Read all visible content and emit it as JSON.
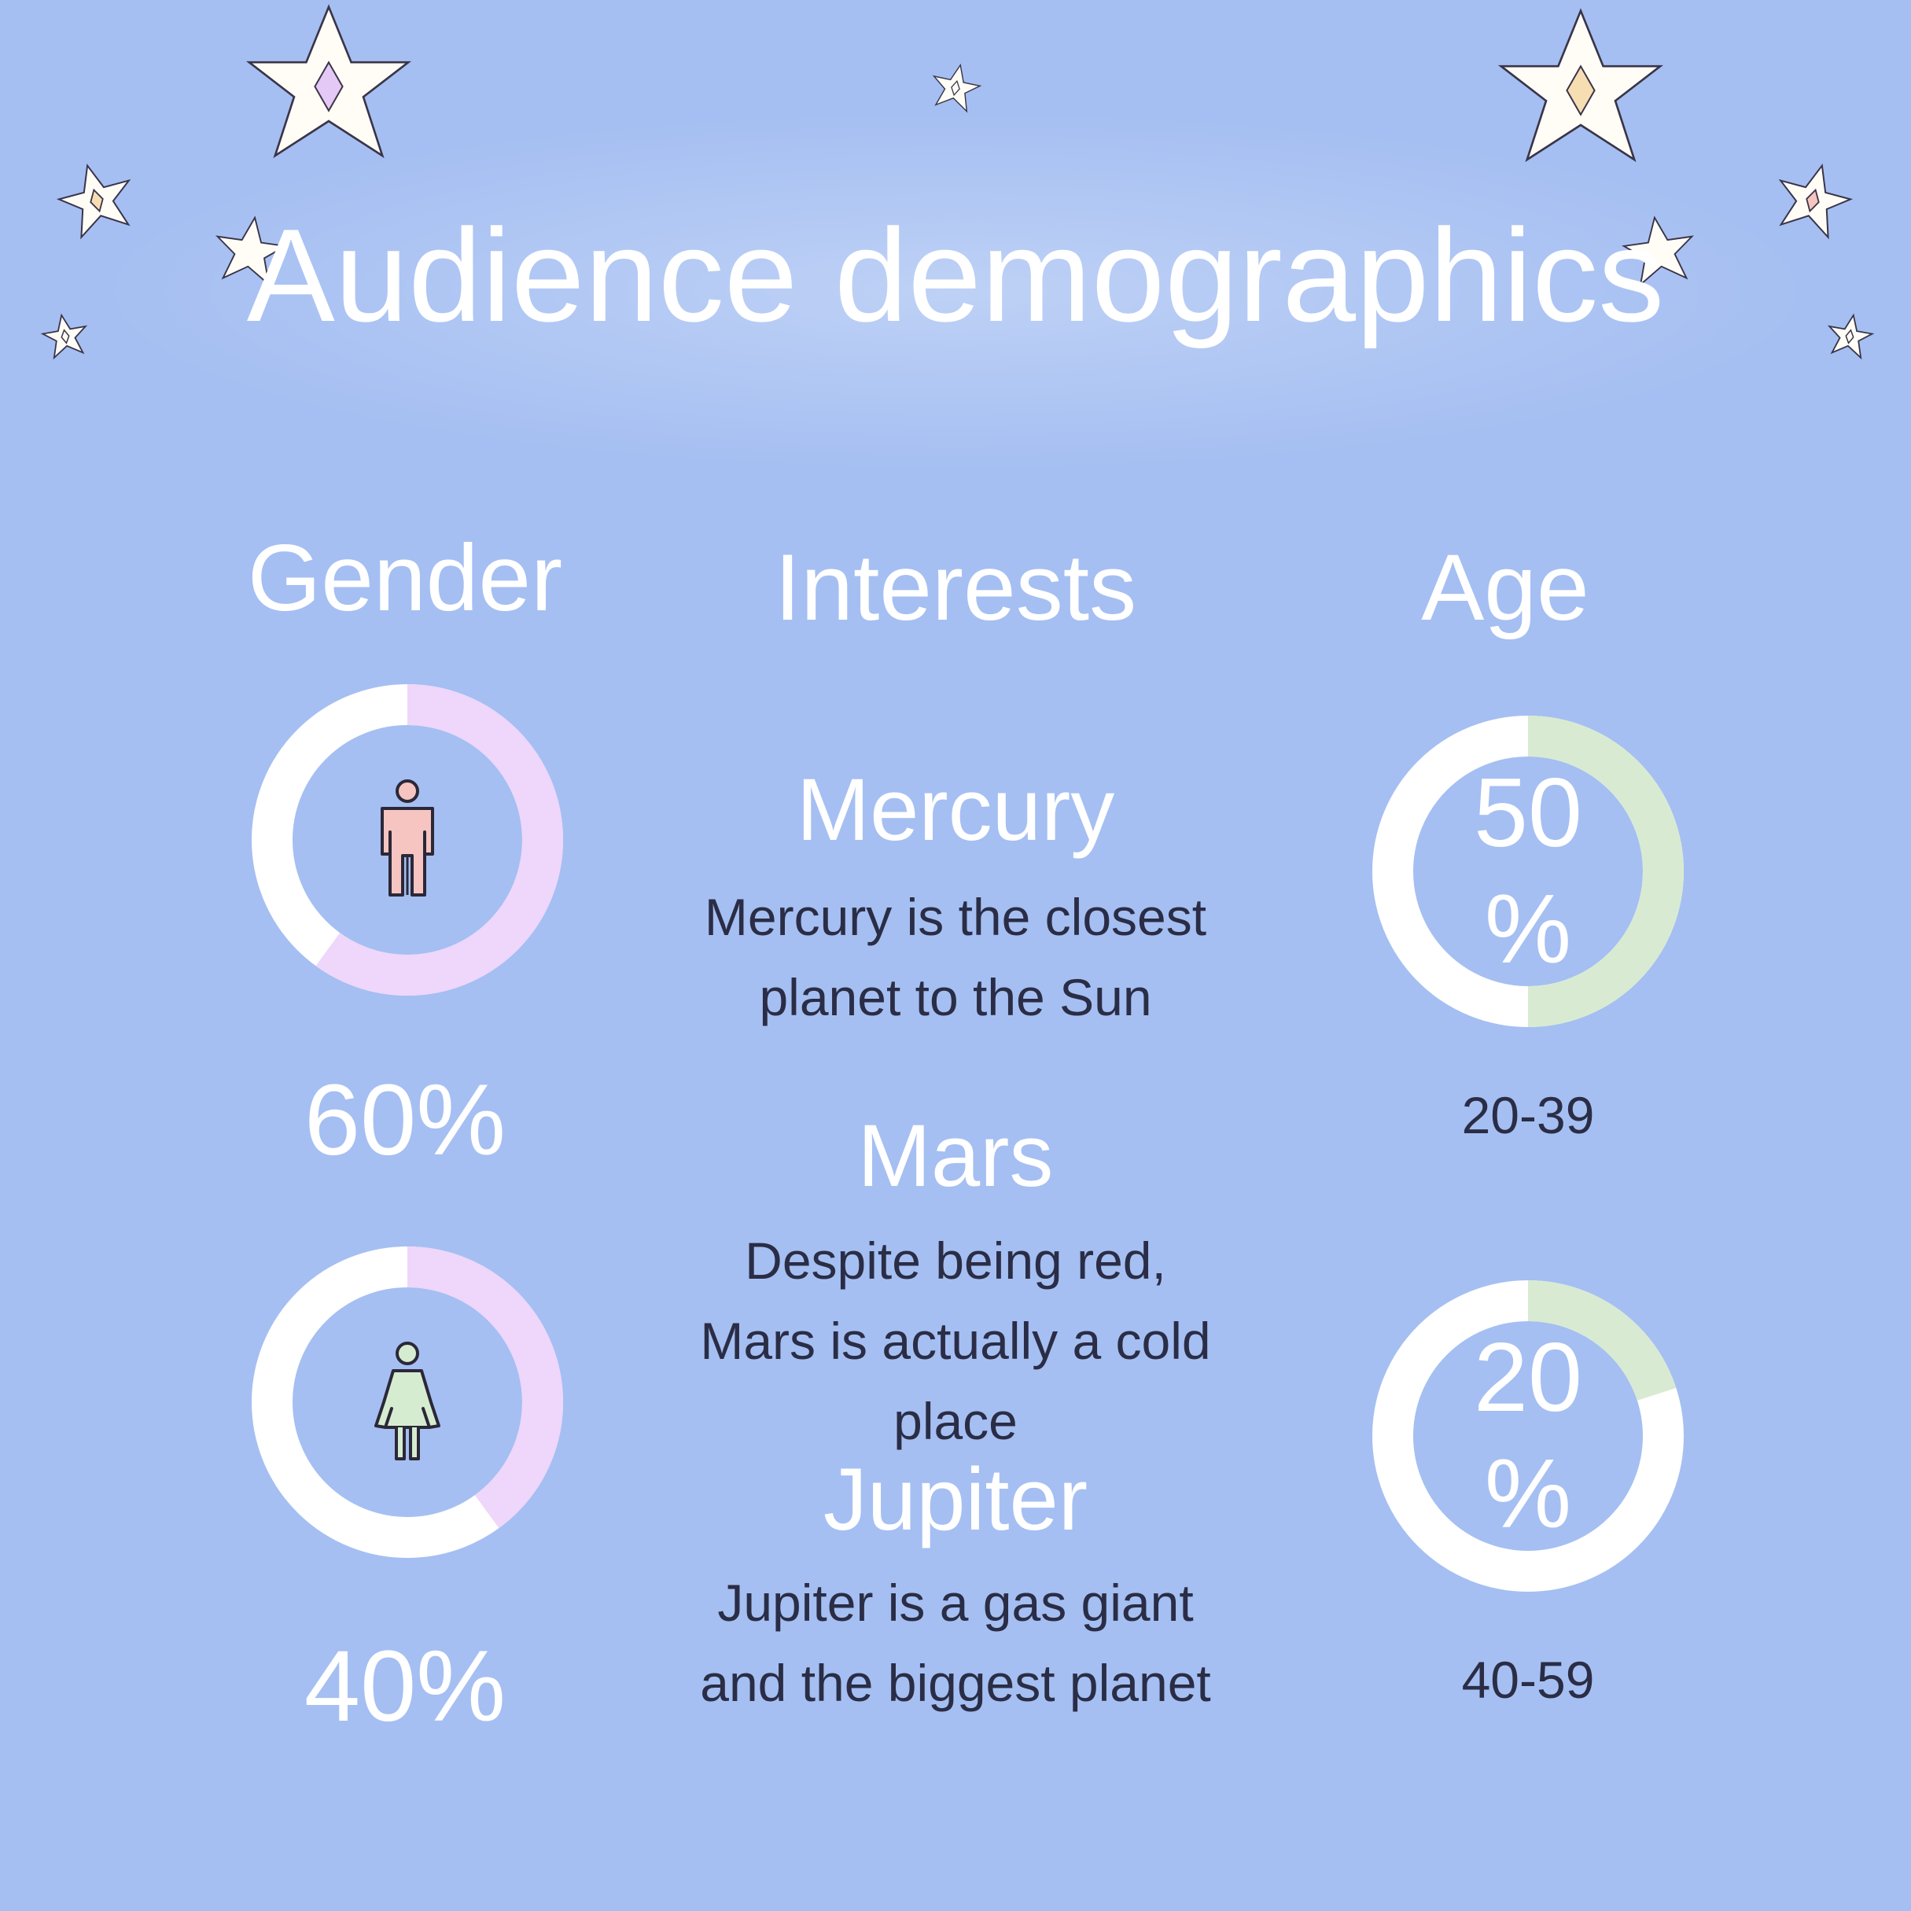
{
  "title": "Audience demographics",
  "columns": {
    "gender": "Gender",
    "interests": "Interests",
    "age": "Age"
  },
  "gender": [
    {
      "icon": "male-person-icon",
      "percent_text": "60%",
      "value": 60,
      "icon_color": "#f6c5c1"
    },
    {
      "icon": "female-person-icon",
      "percent_text": "40%",
      "value": 40,
      "icon_color": "#d6ecd0"
    }
  ],
  "interests": [
    {
      "name": "Mercury",
      "description": "Mercury is the closest planet to the Sun"
    },
    {
      "name": "Mars",
      "description": "Despite being red, Mars is actually a cold place"
    },
    {
      "name": "Jupiter",
      "description": "Jupiter is a gas giant and the biggest planet"
    }
  ],
  "age": [
    {
      "percent_text_1": "50",
      "percent_text_2": "%",
      "value": 50,
      "range": "20-39"
    },
    {
      "percent_text_1": "20",
      "percent_text_2": "%",
      "value": 20,
      "range": "40-59"
    }
  ],
  "colors": {
    "background": "#a5bff2",
    "gender_ring": "#efd6fb",
    "age_ring": "#d8ebd2",
    "ring_track": "#ffffff",
    "text_dark": "#2a2d45",
    "text_light": "#ffffff"
  },
  "decorations": [
    "star-icon"
  ]
}
